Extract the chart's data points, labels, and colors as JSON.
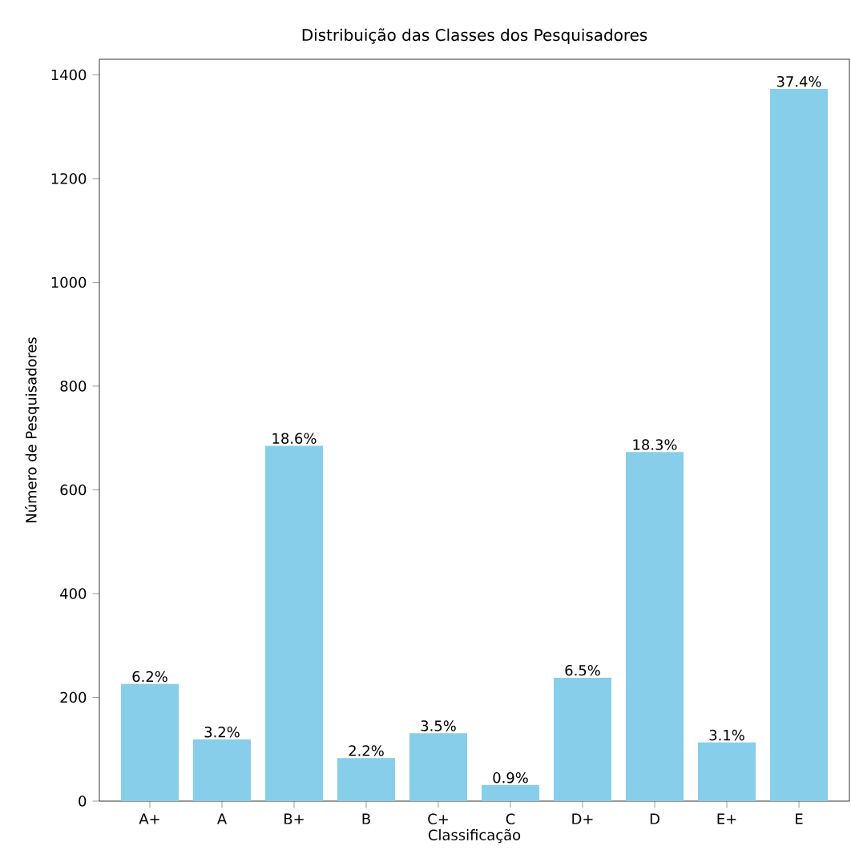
{
  "chart_data": {
    "type": "bar",
    "title": "Distribuição das Classes dos Pesquisadores",
    "xlabel": "Classificação",
    "ylabel": "Número de Pesquisadores",
    "categories": [
      "A+",
      "A",
      "B+",
      "B",
      "C+",
      "C",
      "D+",
      "D",
      "E+",
      "E"
    ],
    "values": [
      226,
      119,
      685,
      83,
      131,
      31,
      238,
      673,
      113,
      1373
    ],
    "annotations": [
      {
        "text": "6.2%",
        "x": "A+",
        "y": 226
      },
      {
        "text": "3.2%",
        "x": "A",
        "y": 119
      },
      {
        "text": "18.6%",
        "x": "B+",
        "y": 685
      },
      {
        "text": "2.2%",
        "x": "B",
        "y": 83
      },
      {
        "text": "3.5%",
        "x": "C+",
        "y": 131
      },
      {
        "text": "0.9%",
        "x": "C",
        "y": 31
      },
      {
        "text": "6.5%",
        "x": "D+",
        "y": 238
      },
      {
        "text": "18.3%",
        "x": "D",
        "y": 673
      },
      {
        "text": "3.1%",
        "x": "E+",
        "y": 113
      },
      {
        "text": "37.4%",
        "x": "E",
        "y": 1373
      }
    ],
    "color": "#87ceeb",
    "ylim": [
      0,
      1430
    ],
    "yticks": [
      0,
      200,
      400,
      600,
      800,
      1000,
      1200,
      1400
    ],
    "grid": false
  }
}
